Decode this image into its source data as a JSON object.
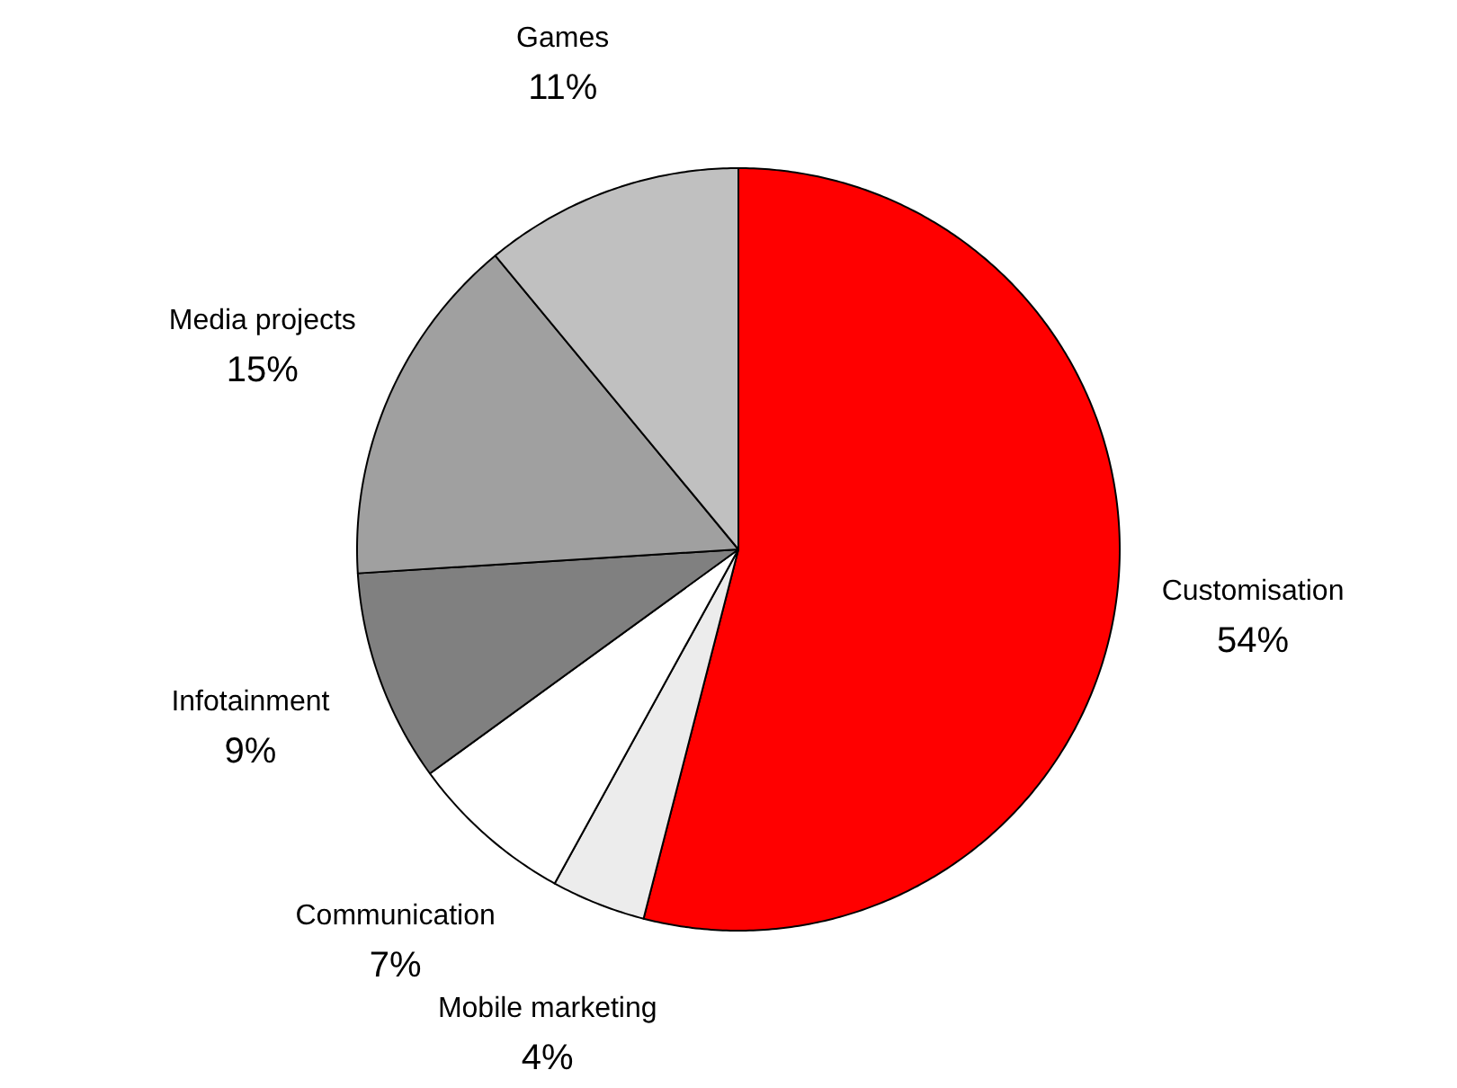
{
  "chart_data": {
    "type": "pie",
    "categories": [
      "Customisation",
      "Mobile marketing",
      "Communication",
      "Infotainment",
      "Media projects",
      "Games"
    ],
    "values": [
      54,
      4,
      7,
      9,
      15,
      11
    ],
    "colors": [
      "#ff0000",
      "#ececec",
      "#ffffff",
      "#808080",
      "#a0a0a0",
      "#c0c0c0"
    ],
    "value_labels": [
      "54%",
      "4%",
      "7%",
      "9%",
      "15%",
      "11%"
    ]
  }
}
